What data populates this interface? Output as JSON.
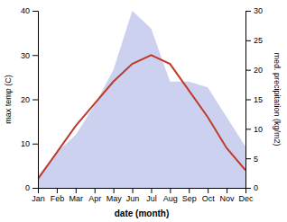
{
  "chart_data": {
    "type": "line",
    "categories": [
      "Jan",
      "Feb",
      "Mar",
      "Apr",
      "May",
      "Jun",
      "Jul",
      "Aug",
      "Sep",
      "Oct",
      "Nov",
      "Dec"
    ],
    "xlabel": "date (month)",
    "ylabel": "max temp (C)",
    "y2label": "med. precipitation (kg/m2)",
    "series": [
      {
        "type": "line",
        "color": "#c0392b",
        "values": [
          2,
          8,
          14,
          19,
          24,
          28,
          30,
          28,
          22,
          16,
          9,
          4
        ]
      },
      {
        "type": "area",
        "axis": "y2",
        "color": "#b0b8e8",
        "values": [
          2,
          6,
          9,
          14,
          20,
          30,
          27,
          18,
          18,
          17,
          12,
          7
        ]
      }
    ],
    "ylim": [
      0,
      40
    ],
    "yticks": [
      0,
      10,
      20,
      30,
      40
    ],
    "y2lim": [
      0,
      30
    ],
    "y2ticks": [
      0,
      5,
      10,
      15,
      20,
      25,
      30
    ],
    "grid": false
  }
}
